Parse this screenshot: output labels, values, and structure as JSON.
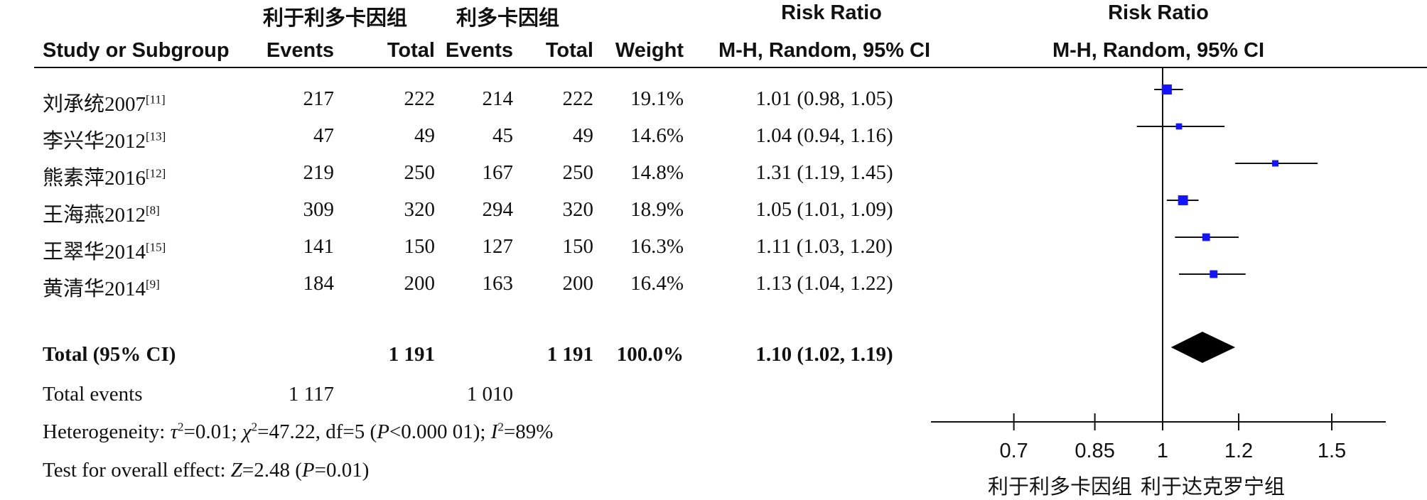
{
  "header": {
    "group1_label": "利于利多卡因组",
    "group2_label": "利多卡因组",
    "risk_ratio_label": "Risk Ratio",
    "study_col": "Study or Subgroup",
    "events_col": "Events",
    "total_col": "Total",
    "weight_col": "Weight",
    "method_label": "M-H, Random, 95% CI",
    "plot_title": "Risk Ratio",
    "plot_method": "M-H, Random, 95% CI"
  },
  "studies": [
    {
      "name": "刘承统2007",
      "ref": "[11]",
      "e1": "217",
      "t1": "222",
      "e2": "214",
      "t2": "222",
      "weight": "19.1%",
      "ci_text": "1.01 (0.98, 1.05)"
    },
    {
      "name": "李兴华2012",
      "ref": "[13]",
      "e1": "47",
      "t1": "49",
      "e2": "45",
      "t2": "49",
      "weight": "14.6%",
      "ci_text": "1.04 (0.94, 1.16)"
    },
    {
      "name": "熊素萍2016",
      "ref": "[12]",
      "e1": "219",
      "t1": "250",
      "e2": "167",
      "t2": "250",
      "weight": "14.8%",
      "ci_text": "1.31 (1.19, 1.45)"
    },
    {
      "name": "王海燕2012",
      "ref": "[8]",
      "e1": "309",
      "t1": "320",
      "e2": "294",
      "t2": "320",
      "weight": "18.9%",
      "ci_text": "1.05 (1.01, 1.09)"
    },
    {
      "name": "王翠华2014",
      "ref": "[15]",
      "e1": "141",
      "t1": "150",
      "e2": "127",
      "t2": "150",
      "weight": "16.3%",
      "ci_text": "1.11 (1.03, 1.20)"
    },
    {
      "name": "黄清华2014",
      "ref": "[9]",
      "e1": "184",
      "t1": "200",
      "e2": "163",
      "t2": "200",
      "weight": "16.4%",
      "ci_text": "1.13 (1.04, 1.22)"
    }
  ],
  "total": {
    "label": "Total (95% CI)",
    "t1": "1 191",
    "t2": "1 191",
    "weight": "100.0%",
    "ci_text": "1.10 (1.02, 1.19)"
  },
  "total_events": {
    "label": "Total events",
    "e1": "1 117",
    "e2": "1 010"
  },
  "footer": {
    "het_prefix": "Heterogeneity: ",
    "tau_sym": "τ",
    "tau_val": "=0.01; ",
    "chi_sym": "χ",
    "chi_val": "=47.22, df=5 (",
    "p_sym": "P",
    "p_val": "<0.000 01); ",
    "i_sym": "I",
    "i_val": "=89%",
    "sup2": "2",
    "overall_prefix": "Test for overall effect: ",
    "z_sym": "Z",
    "z_val": "=2.48 (",
    "p2_sym": "P",
    "p2_val": "=0.01)"
  },
  "axis_labels": {
    "left": "利于利多卡因组",
    "right": "利于达克罗宁组"
  },
  "colors": {
    "study_marker": "#1414ff",
    "diamond": "#000000",
    "axis": "#111111"
  },
  "chart_data": {
    "type": "forest",
    "x_scale": "log",
    "xlim": [
      0.7,
      1.5
    ],
    "ticks": [
      0.7,
      0.85,
      1,
      1.2,
      1.5
    ],
    "tick_labels": [
      "0.7",
      "0.85",
      "1",
      "1.2",
      "1.5"
    ],
    "null_line": 1,
    "studies": [
      {
        "rr": 1.01,
        "lo": 0.98,
        "hi": 1.05,
        "weight": 19.1
      },
      {
        "rr": 1.04,
        "lo": 0.94,
        "hi": 1.16,
        "weight": 14.6
      },
      {
        "rr": 1.31,
        "lo": 1.19,
        "hi": 1.45,
        "weight": 14.8
      },
      {
        "rr": 1.05,
        "lo": 1.01,
        "hi": 1.09,
        "weight": 18.9
      },
      {
        "rr": 1.11,
        "lo": 1.03,
        "hi": 1.2,
        "weight": 16.3
      },
      {
        "rr": 1.13,
        "lo": 1.04,
        "hi": 1.22,
        "weight": 16.4
      }
    ],
    "pooled": {
      "rr": 1.1,
      "lo": 1.02,
      "hi": 1.19
    }
  }
}
